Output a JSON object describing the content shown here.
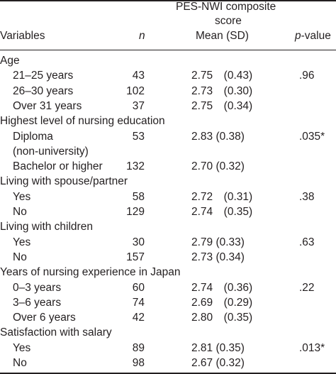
{
  "header": {
    "composite_line1": "PES-NWI composite",
    "composite_line2": "score",
    "variables": "Variables",
    "n": "n",
    "mean_sd": "Mean (SD)",
    "p_value": "p-value"
  },
  "rows": [
    {
      "label": "Age",
      "n": "",
      "mean": "",
      "p": ""
    },
    {
      "label": "21–25 years",
      "n": "43",
      "mean": "2.75　(0.43)",
      "p": ".96"
    },
    {
      "label": "26–30 years",
      "n": "102",
      "mean": "2.73　(0.30)",
      "p": ""
    },
    {
      "label": "Over 31 years",
      "n": "37",
      "mean": "2.75　(0.34)",
      "p": ""
    },
    {
      "label": "Highest level of nursing education",
      "n": "",
      "mean": "",
      "p": ""
    },
    {
      "label": "Diploma",
      "n": "53",
      "mean": "2.83 (0.38)",
      "p": ".035*"
    },
    {
      "label": "(non-university)",
      "n": "",
      "mean": "",
      "p": ""
    },
    {
      "label": "Bachelor or higher",
      "n": "132",
      "mean": "2.70 (0.32)",
      "p": ""
    },
    {
      "label": "Living with spouse/partner",
      "n": "",
      "mean": "",
      "p": ""
    },
    {
      "label": "Yes",
      "n": "58",
      "mean": "2.72　(0.31)",
      "p": ".38"
    },
    {
      "label": "No",
      "n": "129",
      "mean": "2.74　(0.35)",
      "p": ""
    },
    {
      "label": "Living with children",
      "n": "",
      "mean": "",
      "p": ""
    },
    {
      "label": "Yes",
      "n": "30",
      "mean": "2.79 (0.33)",
      "p": ".63"
    },
    {
      "label": "No",
      "n": "157",
      "mean": "2.73 (0.34)",
      "p": ""
    },
    {
      "label": "Years of nursing experience in Japan",
      "n": "",
      "mean": "",
      "p": ""
    },
    {
      "label": "0–3 years",
      "n": "60",
      "mean": "2.74　(0.36)",
      "p": ".22"
    },
    {
      "label": "3–6 years",
      "n": "74",
      "mean": "2.69　(0.29)",
      "p": ""
    },
    {
      "label": "Over 6 years",
      "n": "42",
      "mean": "2.80　(0.35)",
      "p": ""
    },
    {
      "label": "Satisfaction with salary",
      "n": "",
      "mean": "",
      "p": ""
    },
    {
      "label": "Yes",
      "n": "89",
      "mean": "2.81 (0.35)",
      "p": ".013*"
    },
    {
      "label": "No",
      "n": "98",
      "mean": "2.67 (0.32)",
      "p": ""
    }
  ]
}
